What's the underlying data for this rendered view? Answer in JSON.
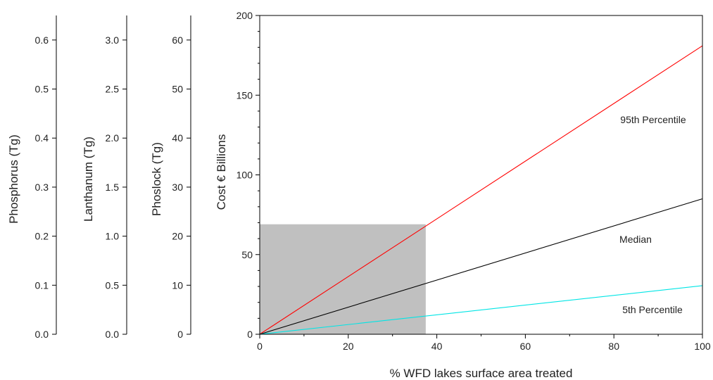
{
  "chart_data": {
    "type": "line",
    "xlabel": "% WFD lakes surface area treated",
    "ylabel": "Cost € Billions",
    "xlim": [
      0,
      100
    ],
    "ylim": [
      0,
      200
    ],
    "x_ticks": [
      "0",
      "20",
      "40",
      "60",
      "80",
      "100"
    ],
    "y_ticks": [
      "0",
      "50",
      "100",
      "150",
      "200"
    ],
    "x": [
      0,
      100
    ],
    "series": [
      {
        "name": "95th Percentile",
        "color": "#ff0000",
        "values": [
          0,
          181
        ]
      },
      {
        "name": "Median",
        "color": "#000000",
        "values": [
          0,
          85
        ]
      },
      {
        "name": "5th Percentile",
        "color": "#00e5e5",
        "values": [
          0,
          30.5
        ]
      }
    ],
    "shaded_region": {
      "x": [
        0,
        37.5
      ],
      "y": [
        0,
        69
      ],
      "color": "#c0c0c0"
    },
    "extra_axes": [
      {
        "label": "Phosphorus (Tg)",
        "range": [
          0,
          0.65
        ],
        "ticks": [
          "0.0",
          "0.1",
          "0.2",
          "0.3",
          "0.4",
          "0.5",
          "0.6"
        ]
      },
      {
        "label": "Lanthanum (Tg)",
        "range": [
          0,
          3.25
        ],
        "ticks": [
          "0.0",
          "0.5",
          "1.0",
          "1.5",
          "2.0",
          "2.5",
          "3.0"
        ]
      },
      {
        "label": "Phoslock (Tg)",
        "range": [
          0,
          65
        ],
        "ticks": [
          "0",
          "10",
          "20",
          "30",
          "40",
          "50",
          "60"
        ]
      }
    ]
  }
}
